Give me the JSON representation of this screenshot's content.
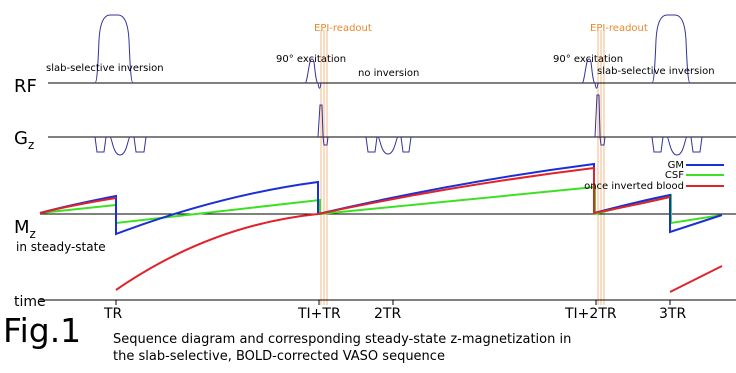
{
  "labels": {
    "rf": "RF",
    "gz_main": "G",
    "gz_sub": "z",
    "mz_main": "M",
    "mz_sub": "z",
    "mz_note": "in steady-state",
    "time": "time"
  },
  "annotations": {
    "inversion_left": "slab-selective inversion",
    "excitation_1": "90° excitation",
    "epi_1": "EPI-readout",
    "no_inversion": "no inversion",
    "excitation_2": "90° excitation",
    "epi_2": "EPI-readout",
    "inversion_right": "slab-selective inversion"
  },
  "ticks": [
    "TR",
    "TI+TR",
    "2TR",
    "TI+2TR",
    "3TR"
  ],
  "legend": [
    {
      "name": "GM",
      "color": "#1a2fd6"
    },
    {
      "name": "CSF",
      "color": "#3ee024"
    },
    {
      "name": "once inverted blood",
      "color": "#e0222a"
    }
  ],
  "colors": {
    "rf_pulse": "#333399",
    "epi_line": "#f2a96a",
    "epi_text": "#e8882d"
  },
  "figure": {
    "number": "Fig.1",
    "caption_line1": "Sequence diagram and corresponding steady-state z-magnetization in",
    "caption_line2": "the slab-selective, BOLD-corrected VASO sequence"
  }
}
